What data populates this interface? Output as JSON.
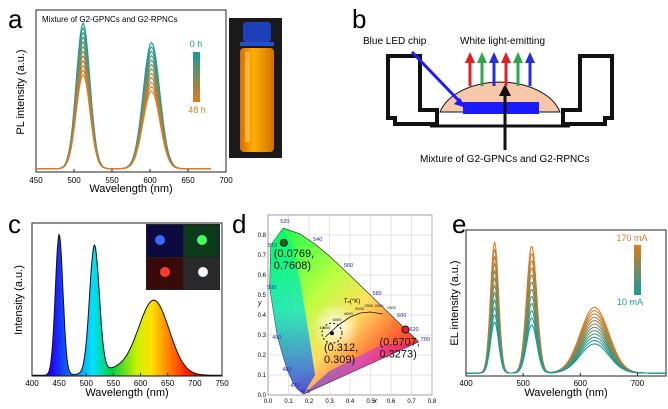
{
  "panel_letters": {
    "a": "a",
    "b": "b",
    "c": "c",
    "d": "d",
    "e": "e"
  },
  "colors": {
    "teal": "#139c9a",
    "orange": "#e07a1f",
    "blue_led": "#1a1aff",
    "vial_liquid": "#ff9a00",
    "dome": "#f6c7a8"
  },
  "panel_a": {
    "annotation": "Mixture of G2-GPNCs and G2-RPNCs",
    "legend_top": "0 h",
    "legend_bottom": "48 h",
    "chart_data": {
      "type": "line",
      "xlabel": "Wavelength (nm)",
      "ylabel": "PL intensity (a.u.)",
      "xlim": [
        450,
        700
      ],
      "x_ticks": [
        "450",
        "500",
        "550",
        "600",
        "650",
        "700"
      ],
      "grid": false,
      "series_description": "12 time-resolved spectra, 0 h (teal) to 48 h (orange)",
      "peaks_nm": [
        512,
        602
      ],
      "peak1_intensity_range": [
        0.58,
        0.9
      ],
      "peak2_intensity_range": [
        0.48,
        0.78
      ]
    }
  },
  "panel_b": {
    "label_chip": "Blue LED chip",
    "label_white": "White light-emitting",
    "label_mixture": "Mixture of G2-GPNCs and G2-RPNCs",
    "arrow_colors": [
      "#e02020",
      "#2ea84a",
      "#2a2ae0",
      "#e02020",
      "#2ea84a",
      "#2a2ae0"
    ]
  },
  "panel_c": {
    "chart_data": {
      "type": "area",
      "xlabel": "Wavelength (nm)",
      "ylabel": "Intensity (a.u.)",
      "xlim": [
        400,
        750
      ],
      "x_ticks": [
        "400",
        "450",
        "500",
        "550",
        "600",
        "650",
        "700",
        "750"
      ],
      "peaks": [
        {
          "x": 450,
          "y": 0.92
        },
        {
          "x": 515,
          "y": 0.83
        },
        {
          "x": 625,
          "y": 0.48
        }
      ],
      "fill": "spectral gradient"
    }
  },
  "panel_d": {
    "chart_data": {
      "type": "scatter",
      "xlabel": "x",
      "ylabel": "y",
      "xlim": [
        0.0,
        0.8
      ],
      "ylim": [
        0.0,
        0.9
      ],
      "x_ticks": [
        "0.0",
        "0.1",
        "0.2",
        "0.3",
        "0.4",
        "0.5",
        "0.6",
        "0.7",
        "0.8"
      ],
      "y_ticks": [
        "0.0",
        "0.1",
        "0.2",
        "0.3",
        "0.4",
        "0.5",
        "0.6",
        "0.7",
        "0.8"
      ],
      "points": [
        {
          "label": "(0.0769,\n0.7608)",
          "x": 0.0769,
          "y": 0.7608
        },
        {
          "label": "(0.312,\n0.309)",
          "x": 0.312,
          "y": 0.309
        },
        {
          "label": "(0.6707,\n0.3273)",
          "x": 0.6707,
          "y": 0.3273
        }
      ],
      "locus_wavelength_labels": [
        "460",
        "470",
        "480",
        "490",
        "500",
        "510",
        "520",
        "540",
        "560",
        "580",
        "600",
        "620",
        "700"
      ],
      "planckian_label": "Tₙ(°K)",
      "cct_labels": [
        "10000",
        "6000",
        "4000",
        "3000",
        "2500",
        "2000",
        "1500"
      ]
    }
  },
  "panel_e": {
    "legend_top": "170 mA",
    "legend_bottom": "10 mA",
    "chart_data": {
      "type": "line",
      "xlabel": "Wavelength (nm)",
      "ylabel": "EL intensity (a.u.)",
      "xlim": [
        400,
        750
      ],
      "x_ticks": [
        "400",
        "500",
        "600",
        "700"
      ],
      "series_description": "EL spectra at drive currents 10 mA (teal) to 170 mA (orange)",
      "peaks_nm": [
        450,
        515,
        625
      ],
      "peak1_intensity_range": [
        0.35,
        0.9
      ],
      "peak2_intensity_range": [
        0.33,
        0.87
      ],
      "peak3_intensity_range": [
        0.2,
        0.45
      ]
    }
  }
}
